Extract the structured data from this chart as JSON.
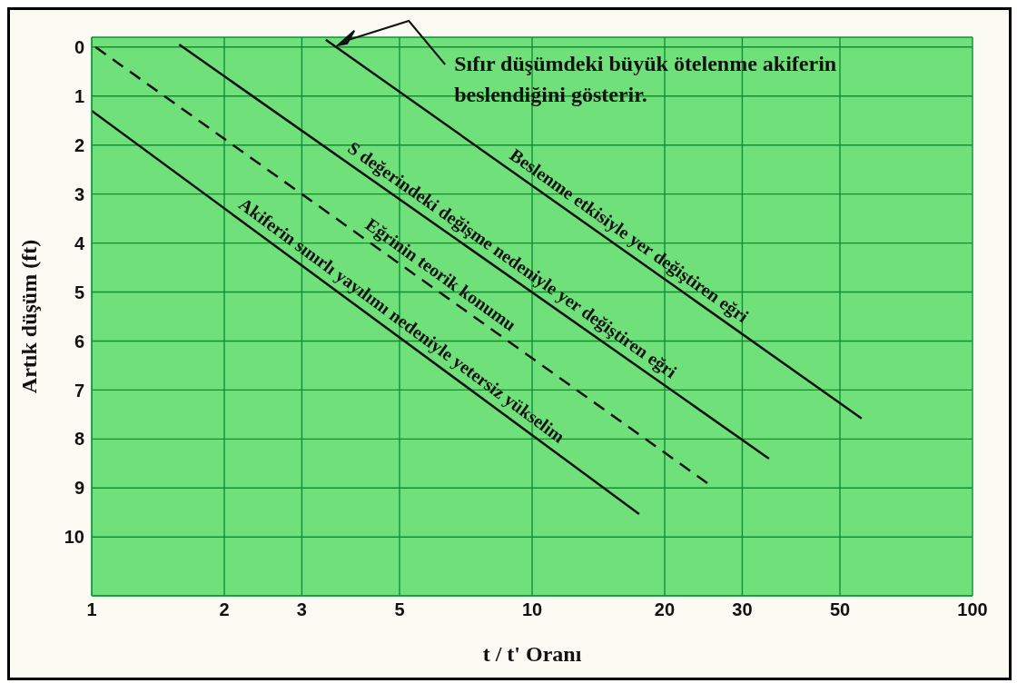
{
  "chart_data": {
    "type": "line",
    "xlabel": "t / t' Oranı",
    "ylabel": "Artık düşüm (ft)",
    "log": "x",
    "xlim": [
      1,
      100
    ],
    "xticks": [
      1,
      2,
      3,
      5,
      10,
      20,
      30,
      50,
      100
    ],
    "ylim": [
      11.2,
      -0.2
    ],
    "yticks": [
      0,
      1,
      2,
      3,
      4,
      5,
      6,
      7,
      8,
      9,
      10
    ],
    "grid": true,
    "legend": false,
    "marker": "none",
    "series": [
      {
        "color": "#111111",
        "x": [
          3.4,
          56
        ],
        "values": [
          -0.15,
          7.58
        ],
        "line_style": "solid"
      },
      {
        "color": "#111111",
        "x": [
          1.58,
          34.5
        ],
        "values": [
          -0.05,
          8.4
        ],
        "line_style": "solid"
      },
      {
        "color": "#111111",
        "x": [
          1.02,
          25
        ],
        "values": [
          0,
          8.9
        ],
        "line_style": "dashed"
      },
      {
        "color": "#111111",
        "x": [
          1,
          17.5
        ],
        "values": [
          1.3,
          9.53
        ],
        "line_style": "solid"
      }
    ],
    "annotations": [
      "Sıfır düşümdeki büyük ötelenme akiferin beslendiğini gösterir.",
      "Beslenme etkisiyle yer değiştiren eğri",
      "S değerindeki değişme nedeniyle yer değiştiren eğri",
      "Eğrinin teorik konumu",
      "Akiferin sınırlı yayılımı nedeniyle yetersiz yükselim"
    ]
  }
}
